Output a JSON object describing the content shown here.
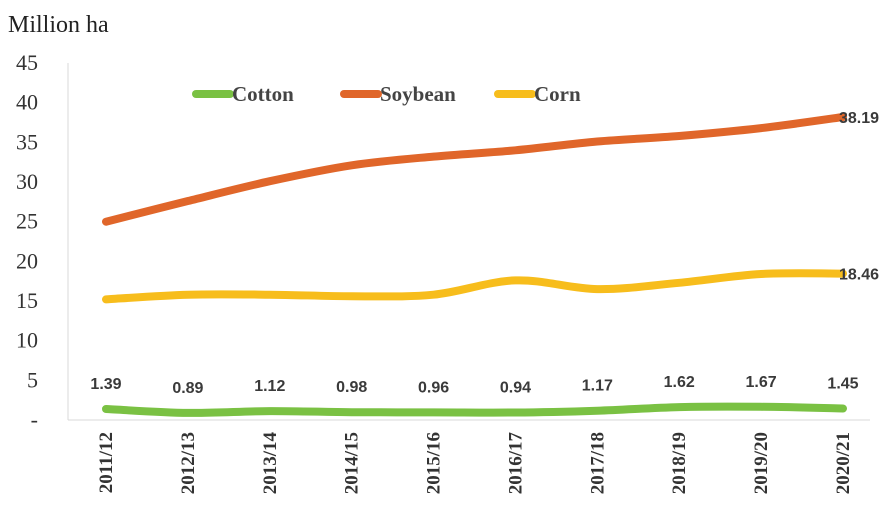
{
  "chart_data": {
    "type": "line",
    "ylabel": "Million ha",
    "xlabel": "",
    "ylim": [
      0,
      45
    ],
    "yticks": [
      "-",
      "5",
      "10",
      "15",
      "20",
      "25",
      "30",
      "35",
      "40",
      "45"
    ],
    "categories": [
      "2011/12",
      "2012/13",
      "2013/14",
      "2014/15",
      "2015/16",
      "2016/17",
      "2017/18",
      "2018/19",
      "2019/20",
      "2020/21"
    ],
    "legend_position": "top",
    "grid": false,
    "series": [
      {
        "name": "Cotton",
        "color": "#7ac143",
        "values": [
          1.39,
          0.89,
          1.12,
          0.98,
          0.96,
          0.94,
          1.17,
          1.62,
          1.67,
          1.45
        ],
        "labels": [
          "1.39",
          "0.89",
          "1.12",
          "0.98",
          "0.96",
          "0.94",
          "1.17",
          "1.62",
          "1.67",
          "1.45"
        ]
      },
      {
        "name": "Soybean",
        "color": "#e0662a",
        "values": [
          25.0,
          27.6,
          30.1,
          32.1,
          33.2,
          34.0,
          35.1,
          35.8,
          36.8,
          38.19
        ],
        "labels": [
          "",
          "",
          "",
          "",
          "",
          "",
          "",
          "",
          "",
          "38.19"
        ]
      },
      {
        "name": "Corn",
        "color": "#f7bd1c",
        "values": [
          15.2,
          15.8,
          15.8,
          15.6,
          15.8,
          17.6,
          16.5,
          17.3,
          18.4,
          18.46
        ],
        "labels": [
          "",
          "",
          "",
          "",
          "",
          "",
          "",
          "",
          "",
          "18.46"
        ]
      }
    ]
  }
}
